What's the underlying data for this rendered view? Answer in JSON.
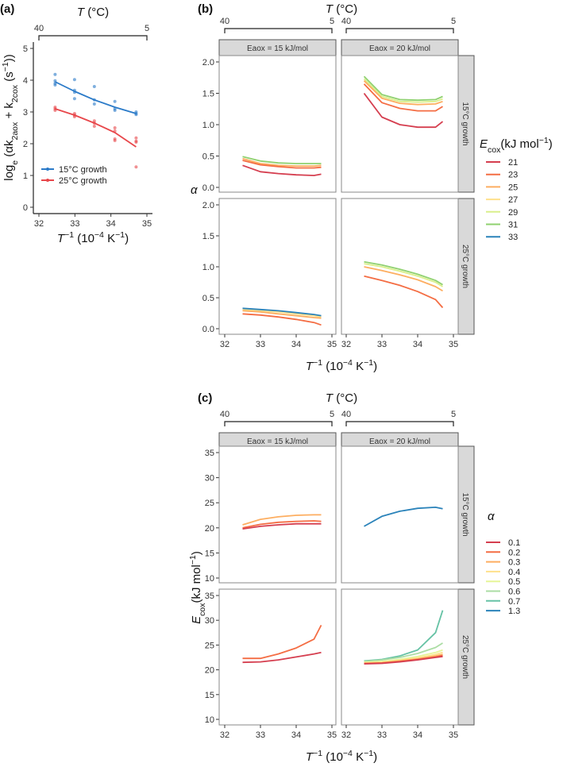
{
  "panel_labels": {
    "a": "(a)",
    "b": "(b)",
    "c": "(c)"
  },
  "top_axis": {
    "title_T": "T",
    "title_unit": " (°C)",
    "left": "40",
    "right": "5"
  },
  "x_title": {
    "main": "T",
    "sup": "−1",
    "rest": " (10",
    "sup2": "−4",
    "rest2": " K",
    "sup3": "−1",
    "end": ")"
  },
  "chart_data": [
    {
      "id": "a",
      "type": "scatter",
      "title": "",
      "ylabel": "log_e (αk_2aox + k_2cox (s^-1))",
      "ylabel_parts": {
        "a": "log",
        "sub1": "e",
        "b": " (αk",
        "sub2": "2aox",
        "c": " + k",
        "sub3": "2cox",
        "d": " (s",
        "sup": "−1",
        "e": "))"
      },
      "xlim": [
        32,
        35
      ],
      "ylim": [
        0,
        5
      ],
      "xticks": [
        32,
        33,
        34,
        35
      ],
      "yticks": [
        0,
        1,
        2,
        3,
        4,
        5
      ],
      "legend": {
        "position": "bottom-left",
        "entries": [
          "15°C growth",
          "25°C growth"
        ]
      },
      "series": [
        {
          "name": "15°C growth",
          "color": "#2a7ac8",
          "fit_x": [
            32.45,
            32.99,
            33.54,
            34.11,
            34.7
          ],
          "fit_y": [
            3.95,
            3.65,
            3.38,
            3.15,
            2.95
          ],
          "points": [
            [
              32.45,
              4.18
            ],
            [
              32.45,
              3.98
            ],
            [
              32.45,
              3.9
            ],
            [
              32.45,
              3.85
            ],
            [
              32.99,
              4.02
            ],
            [
              32.99,
              3.68
            ],
            [
              32.99,
              3.62
            ],
            [
              32.99,
              3.42
            ],
            [
              33.54,
              3.8
            ],
            [
              33.54,
              3.38
            ],
            [
              33.54,
              3.25
            ],
            [
              34.11,
              3.33
            ],
            [
              34.11,
              3.1
            ],
            [
              34.11,
              3.05
            ],
            [
              34.7,
              3.0
            ],
            [
              34.7,
              2.95
            ],
            [
              34.7,
              2.92
            ]
          ]
        },
        {
          "name": "25°C growth",
          "color": "#e8474b",
          "fit_x": [
            32.45,
            32.99,
            33.54,
            34.11,
            34.7
          ],
          "fit_y": [
            3.1,
            2.9,
            2.65,
            2.35,
            1.9
          ],
          "points": [
            [
              32.45,
              3.15
            ],
            [
              32.45,
              3.1
            ],
            [
              32.45,
              3.05
            ],
            [
              32.99,
              2.95
            ],
            [
              32.99,
              2.9
            ],
            [
              32.99,
              2.85
            ],
            [
              33.54,
              2.72
            ],
            [
              33.54,
              2.65
            ],
            [
              33.54,
              2.55
            ],
            [
              34.11,
              2.5
            ],
            [
              34.11,
              2.4
            ],
            [
              34.11,
              2.15
            ],
            [
              34.11,
              2.1
            ],
            [
              34.7,
              2.18
            ],
            [
              34.7,
              2.08
            ],
            [
              34.7,
              2.05
            ],
            [
              34.7,
              1.27
            ]
          ]
        }
      ]
    },
    {
      "id": "b",
      "type": "line",
      "ylabel": "α",
      "xlim": [
        32,
        35
      ],
      "ylim": [
        0,
        2
      ],
      "xticks": [
        32,
        33,
        34,
        35
      ],
      "yticks": [
        "0.0",
        "0.5",
        "1.0",
        "1.5",
        "2.0"
      ],
      "columns": [
        "Eaox = 15 kJ/mol",
        "Eaox = 20 kJ/mol"
      ],
      "rows": [
        "15°C growth",
        "25°C growth"
      ],
      "legend": {
        "title_main": "E",
        "title_sub": "cox",
        "title_rest": "(kJ mol",
        "title_sup": "−1",
        "title_end": ")",
        "position": "right",
        "entries": [
          {
            "label": "21",
            "color": "#d53e4f"
          },
          {
            "label": "23",
            "color": "#f46d43"
          },
          {
            "label": "25",
            "color": "#fdae61"
          },
          {
            "label": "27",
            "color": "#fee08b"
          },
          {
            "label": "29",
            "color": "#d9ef8b"
          },
          {
            "label": "31",
            "color": "#8fd16f"
          },
          {
            "label": "33",
            "color": "#2b83ba"
          }
        ]
      },
      "x": [
        32.5,
        33,
        33.5,
        34,
        34.5,
        34.7
      ],
      "facets": [
        {
          "row": 0,
          "col": 0,
          "series": [
            {
              "name": "31",
              "values": [
                0.49,
                0.42,
                0.39,
                0.38,
                0.38,
                0.38
              ]
            },
            {
              "name": "25",
              "values": [
                0.46,
                0.38,
                0.35,
                0.34,
                0.34,
                0.35
              ]
            },
            {
              "name": "23",
              "values": [
                0.43,
                0.36,
                0.33,
                0.31,
                0.31,
                0.32
              ]
            },
            {
              "name": "21",
              "values": [
                0.35,
                0.25,
                0.22,
                0.2,
                0.19,
                0.21
              ]
            }
          ]
        },
        {
          "row": 0,
          "col": 1,
          "series": [
            {
              "name": "31",
              "values": [
                1.77,
                1.48,
                1.4,
                1.39,
                1.4,
                1.45
              ]
            },
            {
              "name": "29",
              "values": [
                1.73,
                1.45,
                1.37,
                1.36,
                1.37,
                1.41
              ]
            },
            {
              "name": "25",
              "values": [
                1.7,
                1.42,
                1.34,
                1.32,
                1.33,
                1.37
              ]
            },
            {
              "name": "23",
              "values": [
                1.65,
                1.35,
                1.26,
                1.22,
                1.22,
                1.29
              ]
            },
            {
              "name": "21",
              "values": [
                1.5,
                1.12,
                1.0,
                0.96,
                0.96,
                1.05
              ]
            }
          ]
        },
        {
          "row": 1,
          "col": 0,
          "series": [
            {
              "name": "27",
              "values": [
                0.31,
                0.29,
                0.27,
                0.24,
                0.21,
                0.19
              ]
            },
            {
              "name": "25",
              "values": [
                0.29,
                0.27,
                0.24,
                0.21,
                0.18,
                0.17
              ]
            },
            {
              "name": "33",
              "values": [
                0.33,
                0.31,
                0.29,
                0.26,
                0.23,
                0.21
              ]
            },
            {
              "name": "23",
              "values": [
                0.24,
                0.22,
                0.19,
                0.15,
                0.1,
                0.06
              ]
            }
          ]
        },
        {
          "row": 1,
          "col": 1,
          "series": [
            {
              "name": "31",
              "values": [
                1.08,
                1.03,
                0.96,
                0.88,
                0.78,
                0.71
              ]
            },
            {
              "name": "29",
              "values": [
                1.05,
                1.0,
                0.93,
                0.85,
                0.75,
                0.68
              ]
            },
            {
              "name": "25",
              "values": [
                1.0,
                0.94,
                0.87,
                0.79,
                0.68,
                0.61
              ]
            },
            {
              "name": "23",
              "values": [
                0.85,
                0.78,
                0.7,
                0.6,
                0.47,
                0.34
              ]
            }
          ]
        }
      ]
    },
    {
      "id": "c",
      "type": "line",
      "ylabel_parts": {
        "main": "E",
        "sub": "cox",
        "rest": "(kJ mol",
        "sup": "−1",
        "end": ")"
      },
      "xlim": [
        32,
        35
      ],
      "ylim": [
        10,
        35
      ],
      "xticks": [
        32,
        33,
        34,
        35
      ],
      "yticks": [
        "10",
        "15",
        "20",
        "25",
        "30",
        "35"
      ],
      "columns": [
        "Eaox = 15 kJ/mol",
        "Eaox = 20 kJ/mol"
      ],
      "rows": [
        "15°C growth",
        "25°C growth"
      ],
      "legend": {
        "title": "α",
        "position": "right",
        "entries": [
          {
            "label": "0.1",
            "color": "#d53e4f"
          },
          {
            "label": "0.2",
            "color": "#f46d43"
          },
          {
            "label": "0.3",
            "color": "#fdae61"
          },
          {
            "label": "0.4",
            "color": "#fee08b"
          },
          {
            "label": "0.5",
            "color": "#e6f598"
          },
          {
            "label": "0.6",
            "color": "#abdda4"
          },
          {
            "label": "0.7",
            "color": "#66c2a5"
          },
          {
            "label": "1.3",
            "color": "#2b83ba"
          }
        ]
      },
      "x": [
        32.5,
        33,
        33.5,
        34,
        34.5,
        34.7
      ],
      "facets": [
        {
          "row": 0,
          "col": 0,
          "series": [
            {
              "name": "0.3",
              "values": [
                20.6,
                21.7,
                22.2,
                22.5,
                22.6,
                22.6
              ]
            },
            {
              "name": "0.2",
              "values": [
                20.0,
                20.7,
                21.1,
                21.3,
                21.4,
                21.3
              ]
            },
            {
              "name": "0.1",
              "values": [
                19.8,
                20.3,
                20.6,
                20.8,
                20.8,
                20.8
              ]
            }
          ]
        },
        {
          "row": 0,
          "col": 1,
          "series": [
            {
              "name": "1.3",
              "values": [
                20.3,
                22.3,
                23.3,
                23.9,
                24.1,
                23.8
              ]
            }
          ]
        },
        {
          "row": 1,
          "col": 0,
          "series": [
            {
              "name": "0.2",
              "values": [
                22.3,
                22.3,
                23.2,
                24.4,
                26.2,
                29.0
              ]
            },
            {
              "name": "0.1",
              "values": [
                21.5,
                21.6,
                22.0,
                22.6,
                23.2,
                23.5
              ]
            }
          ]
        },
        {
          "row": 1,
          "col": 1,
          "series": [
            {
              "name": "0.7",
              "values": [
                21.8,
                22.1,
                22.8,
                24.0,
                27.5,
                32.0
              ]
            },
            {
              "name": "0.6",
              "values": [
                21.7,
                22.0,
                22.5,
                23.3,
                24.5,
                25.4
              ]
            },
            {
              "name": "0.5",
              "values": [
                21.5,
                21.7,
                22.1,
                22.7,
                23.5,
                24.0
              ]
            },
            {
              "name": "0.4",
              "values": [
                21.4,
                21.5,
                21.9,
                22.4,
                23.1,
                23.5
              ]
            },
            {
              "name": "0.3",
              "values": [
                21.3,
                21.4,
                21.8,
                22.2,
                22.8,
                23.1
              ]
            },
            {
              "name": "0.2",
              "values": [
                21.3,
                21.4,
                21.7,
                22.1,
                22.6,
                22.9
              ]
            },
            {
              "name": "0.1",
              "values": [
                21.2,
                21.3,
                21.6,
                22.0,
                22.5,
                22.7
              ]
            }
          ]
        }
      ]
    }
  ]
}
